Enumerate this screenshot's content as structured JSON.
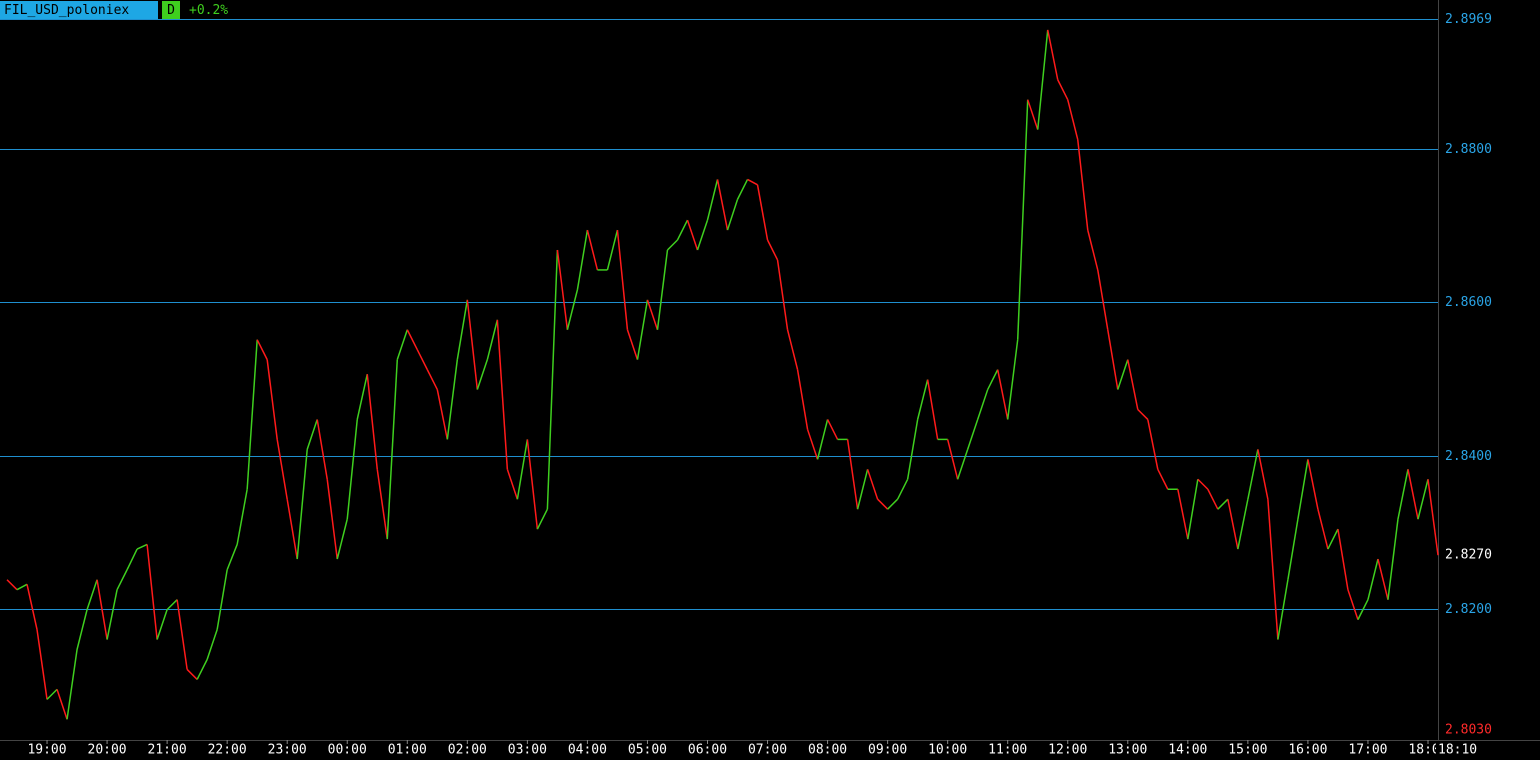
{
  "chart_data": {
    "type": "line",
    "symbol": "FIL_USD_poloniex",
    "timeframe": "D",
    "change": "+0.2%",
    "up_color": "#3fcf1f",
    "down_color": "#ff1a1a",
    "grid_color": "#1f8fcf",
    "grid": true,
    "xlim": [
      "18:13",
      "18:10"
    ],
    "xticks": [
      "19:00",
      "20:00",
      "21:00",
      "22:00",
      "23:00",
      "00:00",
      "01:00",
      "02:00",
      "03:00",
      "04:00",
      "05:00",
      "06:00",
      "07:00",
      "08:00",
      "09:00",
      "10:00",
      "11:00",
      "12:00",
      "13:00",
      "14:00",
      "15:00",
      "16:00",
      "17:00",
      "18:00"
    ],
    "x_last_label": "18:10",
    "ylim": [
      2.8029,
      2.8994
    ],
    "yticks": [
      {
        "value": 2.82,
        "label": "2.8200"
      },
      {
        "value": 2.84,
        "label": "2.8400"
      },
      {
        "value": 2.86,
        "label": "2.8600"
      },
      {
        "value": 2.88,
        "label": "2.8800"
      }
    ],
    "max_label": 2.8969,
    "last_label": {
      "value": 2.827,
      "label": "2.8270"
    },
    "min_label": {
      "value": 2.803,
      "label": "2.8030"
    },
    "x": [
      "18:20",
      "18:30",
      "18:40",
      "18:50",
      "19:00",
      "19:10",
      "19:20",
      "19:30",
      "19:40",
      "19:50",
      "20:00",
      "20:10",
      "20:20",
      "20:30",
      "20:40",
      "20:50",
      "21:00",
      "21:10",
      "21:20",
      "21:30",
      "21:40",
      "21:50",
      "22:00",
      "22:10",
      "22:20",
      "22:30",
      "22:40",
      "22:50",
      "23:00",
      "23:10",
      "23:20",
      "23:30",
      "23:40",
      "23:50",
      "00:00",
      "00:10",
      "00:20",
      "00:30",
      "00:40",
      "00:50",
      "01:00",
      "01:10",
      "01:20",
      "01:30",
      "01:40",
      "01:50",
      "02:00",
      "02:10",
      "02:20",
      "02:30",
      "02:40",
      "02:50",
      "03:00",
      "03:10",
      "03:20",
      "03:30",
      "03:40",
      "03:50",
      "04:00",
      "04:10",
      "04:20",
      "04:30",
      "04:40",
      "04:50",
      "05:00",
      "05:10",
      "05:20",
      "05:30",
      "05:40",
      "05:50",
      "06:00",
      "06:10",
      "06:20",
      "06:30",
      "06:40",
      "06:50",
      "07:00",
      "07:10",
      "07:20",
      "07:30",
      "07:40",
      "07:50",
      "08:00",
      "08:10",
      "08:20",
      "08:30",
      "08:40",
      "08:50",
      "09:00",
      "09:10",
      "09:20",
      "09:30",
      "09:40",
      "09:50",
      "10:00",
      "10:10",
      "10:20",
      "10:30",
      "10:40",
      "10:50",
      "11:00",
      "11:10",
      "11:20",
      "11:30",
      "11:40",
      "11:50",
      "12:00",
      "12:10",
      "12:20",
      "12:30",
      "12:40",
      "12:50",
      "13:00",
      "13:10",
      "13:20",
      "13:30",
      "13:40",
      "13:50",
      "14:00",
      "14:10",
      "14:20",
      "14:30",
      "14:40",
      "14:50",
      "15:00",
      "15:10",
      "15:20",
      "15:30",
      "15:40",
      "15:50",
      "16:00",
      "16:10",
      "16:20",
      "16:30",
      "16:40",
      "16:50",
      "17:00",
      "17:10",
      "17:20",
      "17:30",
      "17:40",
      "17:50",
      "18:00",
      "18:10"
    ],
    "values": [
      2.8238,
      2.8225,
      2.8232,
      2.8173,
      2.8082,
      2.8095,
      2.8056,
      2.8147,
      2.8199,
      2.8238,
      2.816,
      2.8225,
      2.8251,
      2.8278,
      2.8284,
      2.816,
      2.8199,
      2.8212,
      2.8121,
      2.8108,
      2.8134,
      2.8173,
      2.8251,
      2.8284,
      2.8356,
      2.8551,
      2.8525,
      2.8421,
      2.8343,
      2.8265,
      2.8408,
      2.8447,
      2.8369,
      2.8265,
      2.8317,
      2.8447,
      2.8506,
      2.8382,
      2.8291,
      2.8525,
      2.8564,
      2.8538,
      2.8512,
      2.8486,
      2.8421,
      2.8525,
      2.8603,
      2.8486,
      2.8525,
      2.8577,
      2.8382,
      2.8343,
      2.8421,
      2.8304,
      2.833,
      2.8668,
      2.8564,
      2.8616,
      2.8694,
      2.8642,
      2.8642,
      2.8694,
      2.8564,
      2.8525,
      2.8603,
      2.8564,
      2.8668,
      2.8681,
      2.8707,
      2.8668,
      2.8707,
      2.876,
      2.8694,
      2.8734,
      2.876,
      2.8753,
      2.8681,
      2.8655,
      2.8564,
      2.8512,
      2.8434,
      2.8395,
      2.8447,
      2.8421,
      2.8421,
      2.833,
      2.8382,
      2.8343,
      2.833,
      2.8343,
      2.8369,
      2.8447,
      2.8499,
      2.8421,
      2.8421,
      2.8369,
      2.8408,
      2.8447,
      2.8486,
      2.8512,
      2.8447,
      2.8551,
      2.8864,
      2.8825,
      2.8955,
      2.889,
      2.8864,
      2.8812,
      2.8694,
      2.8642,
      2.8564,
      2.8486,
      2.8525,
      2.846,
      2.8447,
      2.8382,
      2.8356,
      2.8356,
      2.8291,
      2.8369,
      2.8356,
      2.833,
      2.8343,
      2.8278,
      2.8343,
      2.8408,
      2.8343,
      2.816,
      2.8238,
      2.8317,
      2.8395,
      2.833,
      2.8278,
      2.8304,
      2.8225,
      2.8186,
      2.8212,
      2.8265,
      2.8212,
      2.8317,
      2.8382,
      2.8317,
      2.8369,
      2.827
    ]
  }
}
